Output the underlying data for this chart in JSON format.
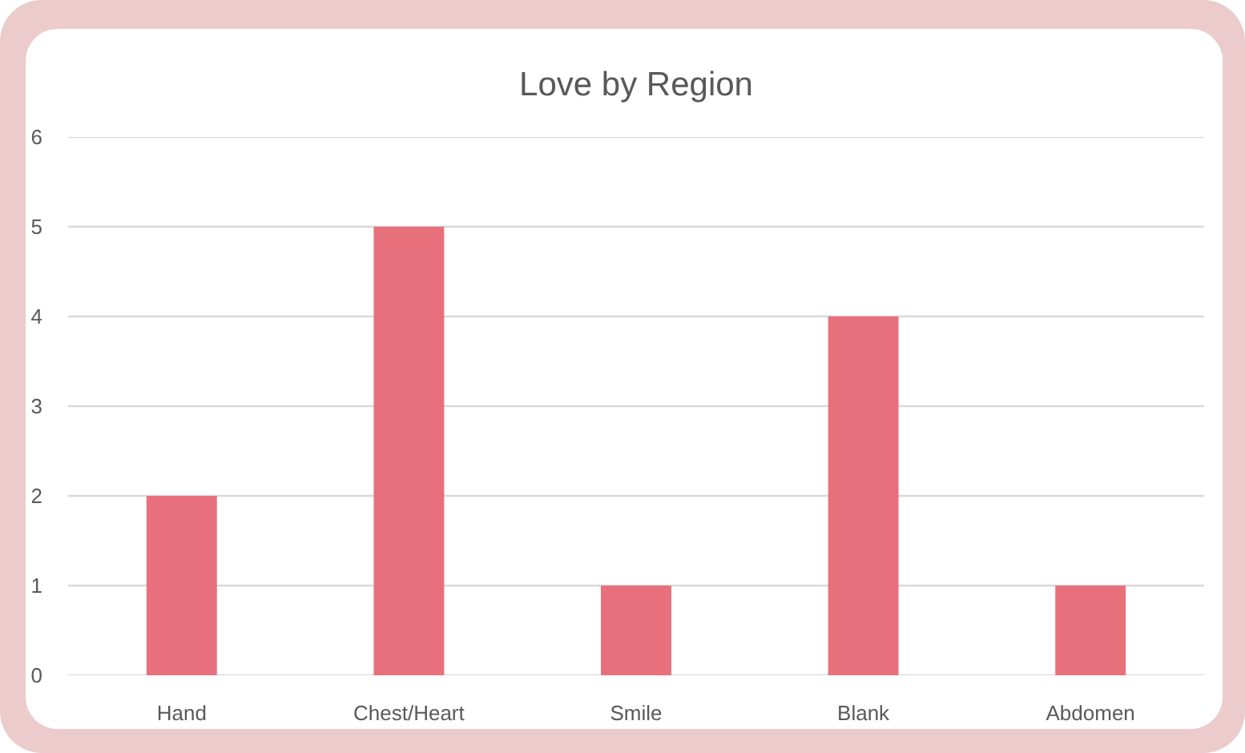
{
  "chart_data": {
    "type": "bar",
    "title": "Love by Region",
    "categories": [
      "Hand",
      "Chest/Heart",
      "Smile",
      "Blank",
      "Abdomen"
    ],
    "values": [
      2,
      5,
      1,
      4,
      1
    ],
    "color": "#e8707c",
    "ylim": [
      0,
      6
    ],
    "yticks": [
      0,
      1,
      2,
      3,
      4,
      5,
      6
    ],
    "grid": "y"
  }
}
